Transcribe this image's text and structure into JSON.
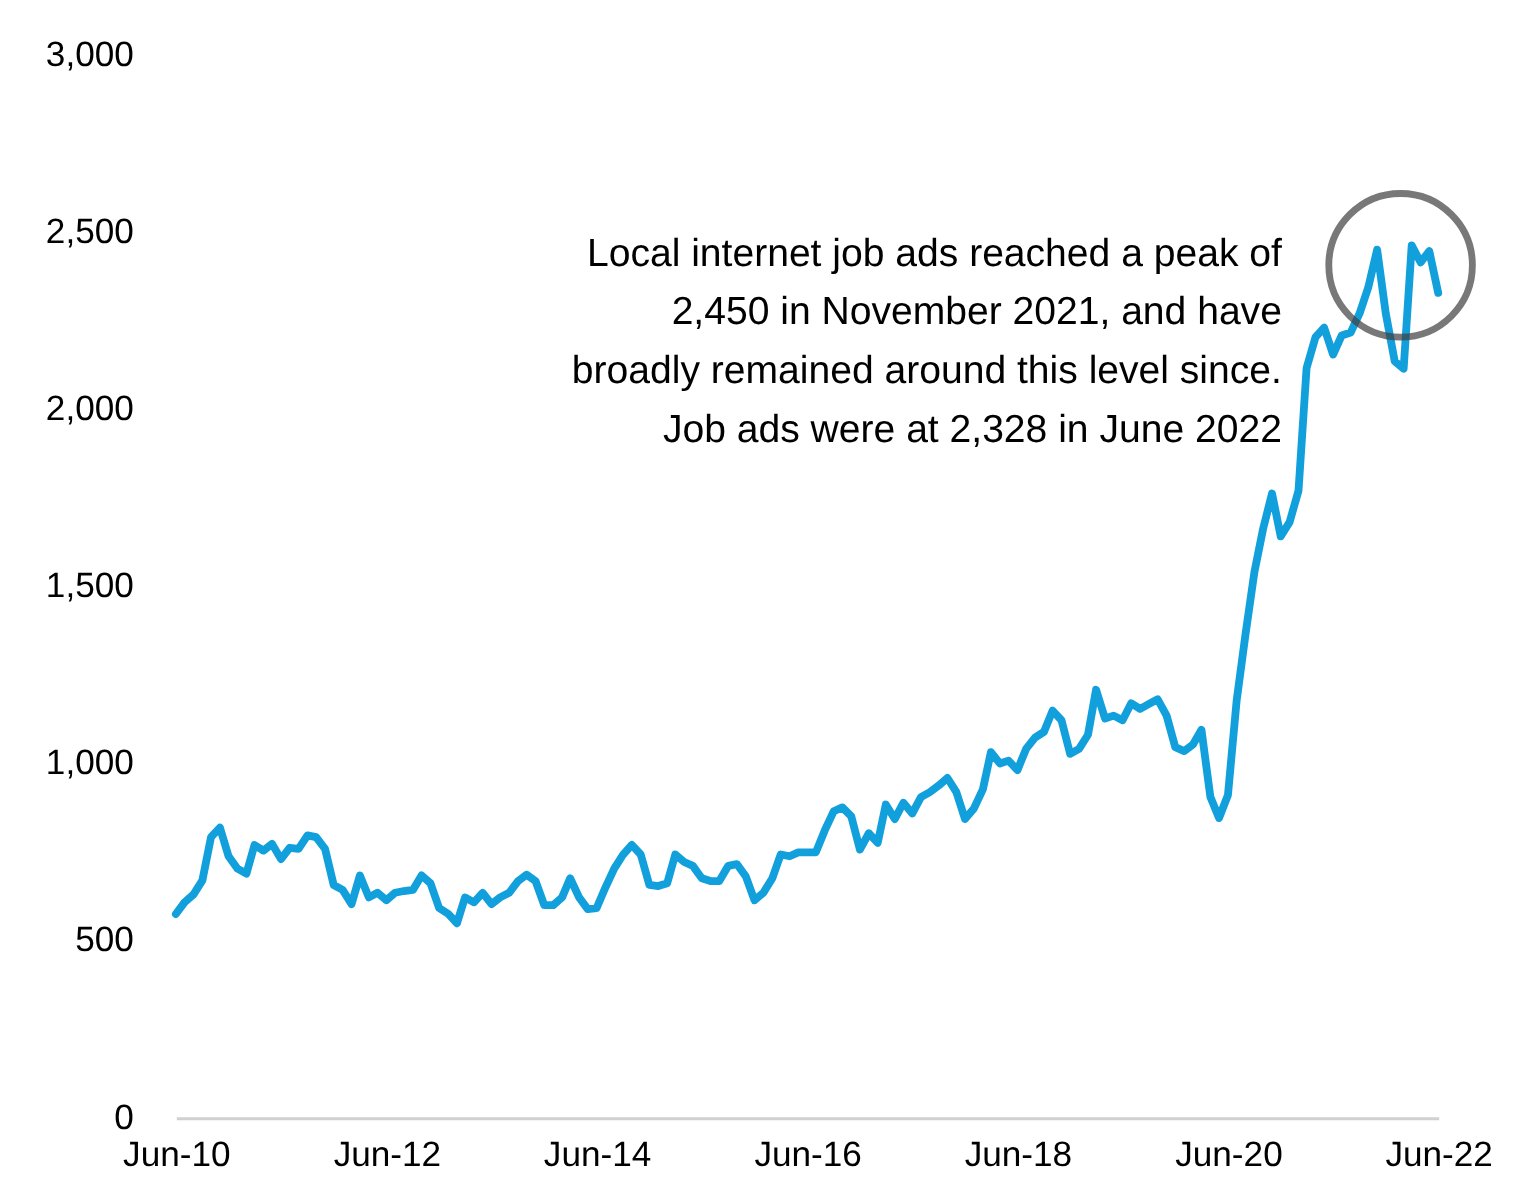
{
  "chart_data": {
    "type": "line",
    "x": [
      "2010-06",
      "2010-07",
      "2010-08",
      "2010-09",
      "2010-10",
      "2010-11",
      "2010-12",
      "2011-01",
      "2011-02",
      "2011-03",
      "2011-04",
      "2011-05",
      "2011-06",
      "2011-07",
      "2011-08",
      "2011-09",
      "2011-10",
      "2011-11",
      "2011-12",
      "2012-01",
      "2012-02",
      "2012-03",
      "2012-04",
      "2012-05",
      "2012-06",
      "2012-07",
      "2012-08",
      "2012-09",
      "2012-10",
      "2012-11",
      "2012-12",
      "2013-01",
      "2013-02",
      "2013-03",
      "2013-04",
      "2013-05",
      "2013-06",
      "2013-07",
      "2013-08",
      "2013-09",
      "2013-10",
      "2013-11",
      "2013-12",
      "2014-01",
      "2014-02",
      "2014-03",
      "2014-04",
      "2014-05",
      "2014-06",
      "2014-07",
      "2014-08",
      "2014-09",
      "2014-10",
      "2014-11",
      "2014-12",
      "2015-01",
      "2015-02",
      "2015-03",
      "2015-04",
      "2015-05",
      "2015-06",
      "2015-07",
      "2015-08",
      "2015-09",
      "2015-10",
      "2015-11",
      "2015-12",
      "2016-01",
      "2016-02",
      "2016-03",
      "2016-04",
      "2016-05",
      "2016-06",
      "2016-07",
      "2016-08",
      "2016-09",
      "2016-10",
      "2016-11",
      "2016-12",
      "2017-01",
      "2017-02",
      "2017-03",
      "2017-04",
      "2017-05",
      "2017-06",
      "2017-07",
      "2017-08",
      "2017-09",
      "2017-10",
      "2017-11",
      "2017-12",
      "2018-01",
      "2018-02",
      "2018-03",
      "2018-04",
      "2018-05",
      "2018-06",
      "2018-07",
      "2018-08",
      "2018-09",
      "2018-10",
      "2018-11",
      "2018-12",
      "2019-01",
      "2019-02",
      "2019-03",
      "2019-04",
      "2019-05",
      "2019-06",
      "2019-07",
      "2019-08",
      "2019-09",
      "2019-10",
      "2019-11",
      "2019-12",
      "2020-01",
      "2020-02",
      "2020-03",
      "2020-04",
      "2020-05",
      "2020-06",
      "2020-07",
      "2020-08",
      "2020-09",
      "2020-10",
      "2020-11",
      "2020-12",
      "2021-01",
      "2021-02",
      "2021-03",
      "2021-04",
      "2021-05",
      "2021-06",
      "2021-07",
      "2021-08",
      "2021-09",
      "2021-10",
      "2021-11",
      "2021-12",
      "2022-01",
      "2022-02",
      "2022-03",
      "2022-04",
      "2022-05",
      "2022-06"
    ],
    "series": [
      {
        "color": "#12a0dc",
        "values": [
          575,
          608,
          630,
          670,
          792,
          819,
          738,
          703,
          689,
          770,
          754,
          773,
          730,
          762,
          759,
          797,
          792,
          759,
          657,
          643,
          603,
          684,
          622,
          635,
          614,
          635,
          640,
          643,
          684,
          662,
          592,
          576,
          549,
          622,
          608,
          635,
          603,
          622,
          635,
          668,
          686,
          668,
          600,
          600,
          622,
          676,
          622,
          589,
          592,
          649,
          703,
          743,
          770,
          743,
          657,
          654,
          662,
          743,
          722,
          711,
          676,
          668,
          668,
          711,
          716,
          681,
          614,
          635,
          676,
          743,
          738,
          749,
          749,
          749,
          811,
          865,
          876,
          851,
          757,
          803,
          776,
          884,
          843,
          889,
          859,
          905,
          919,
          938,
          959,
          919,
          843,
          873,
          927,
          1032,
          1000,
          1008,
          981,
          1041,
          1073,
          1089,
          1149,
          1122,
          1027,
          1041,
          1081,
          1208,
          1127,
          1135,
          1122,
          1170,
          1154,
          1168,
          1181,
          1135,
          1046,
          1035,
          1054,
          1095,
          905,
          846,
          911,
          1176,
          1365,
          1541,
          1662,
          1762,
          1641,
          1681,
          1770,
          2116,
          2203,
          2230,
          2154,
          2208,
          2216,
          2270,
          2343,
          2450,
          2270,
          2135,
          2114,
          2462,
          2414,
          2446,
          2328
        ]
      }
    ],
    "xlim": [
      "2010-06",
      "2022-06"
    ],
    "xticks": [
      {
        "value": "2010-06",
        "label": "Jun-10"
      },
      {
        "value": "2012-06",
        "label": "Jun-12"
      },
      {
        "value": "2014-06",
        "label": "Jun-14"
      },
      {
        "value": "2016-06",
        "label": "Jun-16"
      },
      {
        "value": "2018-06",
        "label": "Jun-18"
      },
      {
        "value": "2020-06",
        "label": "Jun-20"
      },
      {
        "value": "2022-06",
        "label": "Jun-22"
      }
    ],
    "ylim": [
      0,
      3000
    ],
    "yticks": [
      {
        "value": 0,
        "label": "0"
      },
      {
        "value": 500,
        "label": "500"
      },
      {
        "value": 1000,
        "label": "1,000"
      },
      {
        "value": 1500,
        "label": "1,500"
      },
      {
        "value": 2000,
        "label": "2,000"
      },
      {
        "value": 2500,
        "label": "2,500"
      },
      {
        "value": 3000,
        "label": "3,000"
      }
    ],
    "grid": false,
    "marker": "none",
    "line_style": "solid",
    "annotations": [
      {
        "text": "Local internet job ads reached a peak of\n2,450 in November 2021, and have\nbroadly remained around this level since.\nJob ads were at 2,328 in June 2022",
        "x": "2021-11",
        "y": 2450
      }
    ]
  }
}
